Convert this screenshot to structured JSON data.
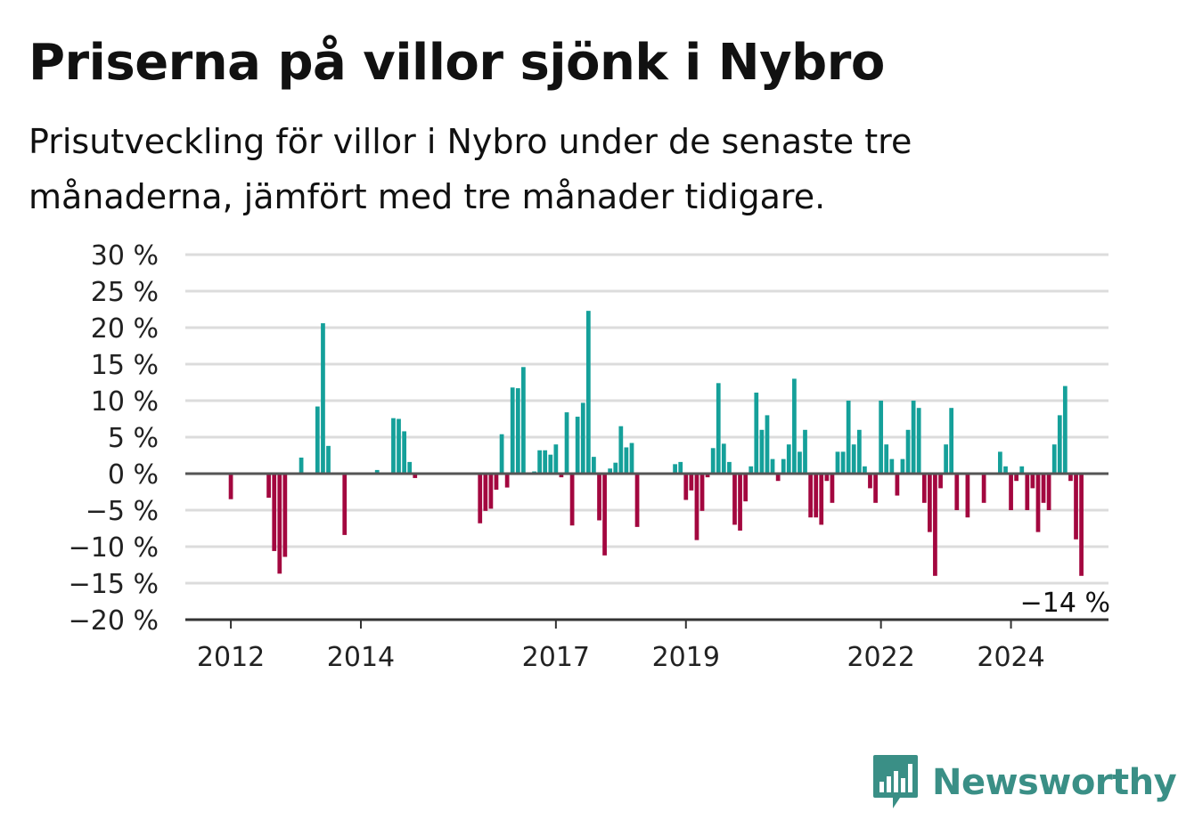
{
  "title": "Priserna på villor sjönk i Nybro",
  "subtitle": "Prisutveckling för villor i Nybro under de senaste tre månaderna, jämfört med tre månader tidigare.",
  "brand": "Newsworthy",
  "colors": {
    "positive": "#15a09a",
    "negative": "#a3073f",
    "grid": "#dcdcdc",
    "zero": "#555555",
    "brand": "#3a8f86"
  },
  "chart_data": {
    "type": "bar",
    "ylim": [
      -20,
      30
    ],
    "y_ticks": [
      30,
      25,
      20,
      15,
      10,
      5,
      0,
      -5,
      -10,
      -15,
      -20
    ],
    "y_tick_labels": [
      "30 %",
      "25 %",
      "20 %",
      "15 %",
      "10 %",
      "5 %",
      "0 %",
      "−5 %",
      "−10 %",
      "−15 %",
      "−20 %"
    ],
    "x_range": [
      2011.3,
      2025.5
    ],
    "x_ticks": [
      2012,
      2014,
      2017,
      2019,
      2022,
      2024
    ],
    "x_tick_labels": [
      "2012",
      "2014",
      "2017",
      "2019",
      "2022",
      "2024"
    ],
    "end_label": "−14 %",
    "grid": true,
    "series": [
      {
        "values": [
          [
            2012.0,
            -3.5
          ],
          [
            2012.583,
            -3.3
          ],
          [
            2012.667,
            -10.6
          ],
          [
            2012.75,
            -13.7
          ],
          [
            2012.833,
            -11.4
          ],
          [
            2013.083,
            2.2
          ],
          [
            2013.333,
            9.2
          ],
          [
            2013.417,
            20.6
          ],
          [
            2013.5,
            3.8
          ],
          [
            2013.75,
            -8.4
          ],
          [
            2014.25,
            0.5
          ],
          [
            2014.5,
            7.6
          ],
          [
            2014.583,
            7.5
          ],
          [
            2014.667,
            5.8
          ],
          [
            2014.75,
            1.6
          ],
          [
            2014.833,
            -0.6
          ],
          [
            2015.833,
            -6.8
          ],
          [
            2015.917,
            -5.1
          ],
          [
            2016.0,
            -4.8
          ],
          [
            2016.083,
            -2.2
          ],
          [
            2016.167,
            5.4
          ],
          [
            2016.25,
            -1.9
          ],
          [
            2016.333,
            11.8
          ],
          [
            2016.417,
            11.7
          ],
          [
            2016.5,
            14.6
          ],
          [
            2016.667,
            0.3
          ],
          [
            2016.75,
            3.2
          ],
          [
            2016.833,
            3.2
          ],
          [
            2016.917,
            2.6
          ],
          [
            2017.0,
            4.0
          ],
          [
            2017.083,
            -0.5
          ],
          [
            2017.167,
            8.4
          ],
          [
            2017.25,
            -7.1
          ],
          [
            2017.333,
            7.8
          ],
          [
            2017.417,
            9.7
          ],
          [
            2017.5,
            22.3
          ],
          [
            2017.583,
            2.3
          ],
          [
            2017.667,
            -6.4
          ],
          [
            2017.75,
            -11.2
          ],
          [
            2017.833,
            0.7
          ],
          [
            2017.917,
            1.5
          ],
          [
            2018.0,
            6.5
          ],
          [
            2018.083,
            3.6
          ],
          [
            2018.167,
            4.2
          ],
          [
            2018.25,
            -7.3
          ],
          [
            2018.833,
            1.3
          ],
          [
            2018.917,
            1.6
          ],
          [
            2019.0,
            -3.6
          ],
          [
            2019.083,
            -2.3
          ],
          [
            2019.167,
            -9.1
          ],
          [
            2019.25,
            -5.1
          ],
          [
            2019.333,
            -0.5
          ],
          [
            2019.417,
            3.5
          ],
          [
            2019.5,
            12.4
          ],
          [
            2019.583,
            4.1
          ],
          [
            2019.667,
            1.6
          ],
          [
            2019.75,
            -7.0
          ],
          [
            2019.833,
            -7.8
          ],
          [
            2019.917,
            -3.8
          ],
          [
            2020.0,
            1.0
          ],
          [
            2020.083,
            11.1
          ],
          [
            2020.167,
            6.0
          ],
          [
            2020.25,
            8.0
          ],
          [
            2020.333,
            2.0
          ],
          [
            2020.417,
            -1.0
          ],
          [
            2020.5,
            2.0
          ],
          [
            2020.583,
            4.0
          ],
          [
            2020.667,
            13.0
          ],
          [
            2020.75,
            3.0
          ],
          [
            2020.833,
            6.0
          ],
          [
            2020.917,
            -6.0
          ],
          [
            2021.0,
            -6.0
          ],
          [
            2021.083,
            -7.0
          ],
          [
            2021.167,
            -1.0
          ],
          [
            2021.25,
            -4.0
          ],
          [
            2021.333,
            3.0
          ],
          [
            2021.417,
            3.0
          ],
          [
            2021.5,
            10.0
          ],
          [
            2021.583,
            4.0
          ],
          [
            2021.667,
            6.0
          ],
          [
            2021.75,
            1.0
          ],
          [
            2021.833,
            -2.0
          ],
          [
            2021.917,
            -4.0
          ],
          [
            2022.0,
            10.0
          ],
          [
            2022.083,
            4.0
          ],
          [
            2022.167,
            2.0
          ],
          [
            2022.25,
            -3.0
          ],
          [
            2022.333,
            2.0
          ],
          [
            2022.417,
            6.0
          ],
          [
            2022.5,
            10.0
          ],
          [
            2022.583,
            9.0
          ],
          [
            2022.667,
            -4.0
          ],
          [
            2022.75,
            -8.0
          ],
          [
            2022.833,
            -14.0
          ],
          [
            2022.917,
            -2.0
          ],
          [
            2023.0,
            4.0
          ],
          [
            2023.083,
            9.0
          ],
          [
            2023.167,
            -5.0
          ],
          [
            2023.333,
            -6.0
          ],
          [
            2023.583,
            -4.0
          ],
          [
            2023.833,
            3.0
          ],
          [
            2023.917,
            1.0
          ],
          [
            2024.0,
            -5.0
          ],
          [
            2024.083,
            -1.0
          ],
          [
            2024.167,
            1.0
          ],
          [
            2024.25,
            -5.0
          ],
          [
            2024.333,
            -2.0
          ],
          [
            2024.417,
            -8.0
          ],
          [
            2024.5,
            -4.0
          ],
          [
            2024.583,
            -5.0
          ],
          [
            2024.667,
            4.0
          ],
          [
            2024.75,
            8.0
          ],
          [
            2024.833,
            12.0
          ],
          [
            2024.917,
            -1.0
          ],
          [
            2025.0,
            -9.0
          ],
          [
            2025.083,
            -14.0
          ]
        ]
      }
    ]
  }
}
